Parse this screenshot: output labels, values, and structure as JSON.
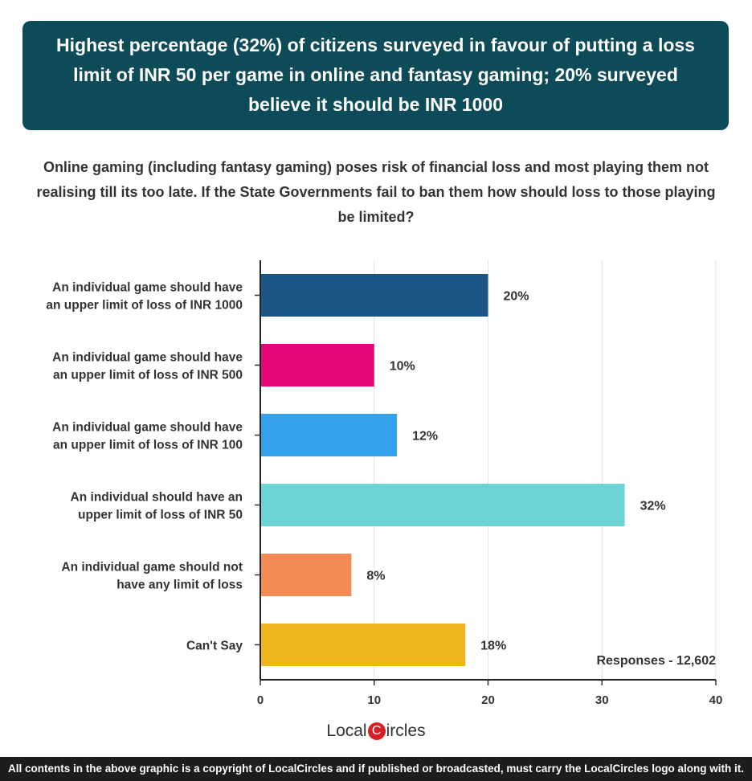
{
  "header": {
    "title": "Highest percentage (32%) of citizens surveyed in favour of putting a loss limit of INR 50 per game in online and fantasy gaming; 20% surveyed believe it should be INR 1000"
  },
  "question": "Online gaming (including fantasy gaming) poses risk of financial loss and most playing them not realising till its too late. If the State Governments fail to ban them how should loss to those playing be limited?",
  "responses_label": "Responses - 12,602",
  "logo": {
    "part1": "Local",
    "c": "C",
    "part2": "ircles"
  },
  "footer": "All contents in the above graphic is a copyright of LocalCircles and if published or broadcasted, must carry the LocalCircles logo along with it.",
  "chart_data": {
    "type": "bar",
    "orientation": "horizontal",
    "categories": [
      [
        "An individual game should have",
        "an upper limit of loss of INR 1000"
      ],
      [
        "An individual game should have",
        "an upper limit of loss of INR 500"
      ],
      [
        "An individual game should have",
        "an upper limit of loss of INR 100"
      ],
      [
        "An individual should have an",
        "upper limit of loss of INR 50"
      ],
      [
        "An individual game should not",
        "have any limit of loss"
      ],
      [
        "Can't Say"
      ]
    ],
    "values": [
      20,
      10,
      12,
      32,
      8,
      18
    ],
    "value_labels": [
      "20%",
      "10%",
      "12%",
      "32%",
      "8%",
      "18%"
    ],
    "colors": [
      "#1b5585",
      "#e2087b",
      "#35a0ee",
      "#6dd3d6",
      "#f48a55",
      "#efb51e"
    ],
    "xlim": [
      0,
      40
    ],
    "xticks": [
      "0",
      "10",
      "20",
      "30",
      "40"
    ],
    "grid": true
  }
}
